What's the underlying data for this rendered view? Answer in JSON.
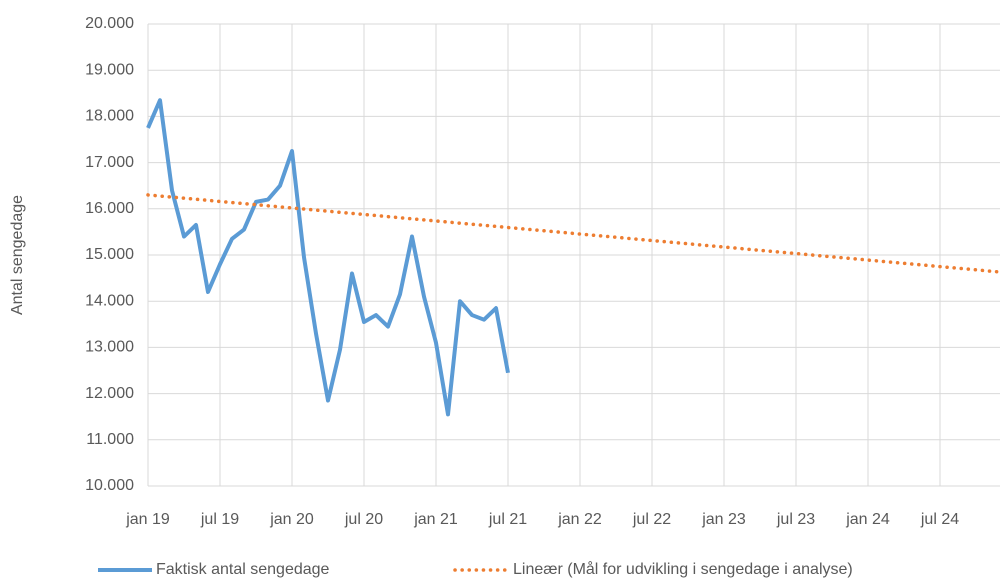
{
  "chart_data": {
    "type": "line",
    "y_label": "Antal sengedage",
    "categories": [
      "jan 19",
      null,
      null,
      null,
      null,
      null,
      "jul 19",
      null,
      null,
      null,
      null,
      null,
      "jan 20",
      null,
      null,
      null,
      null,
      null,
      "jul 20",
      null,
      null,
      null,
      null,
      null,
      "jan 21",
      null,
      null,
      null,
      null,
      null,
      "jul 21",
      null,
      null,
      null,
      null,
      null,
      "jan 22",
      null,
      null,
      null,
      null,
      null,
      "jul 22",
      null,
      null,
      null,
      null,
      null,
      "jan 23",
      null,
      null,
      null,
      null,
      null,
      "jul 23",
      null,
      null,
      null,
      null,
      null,
      "jan 24",
      null,
      null,
      null,
      null,
      null,
      "jul 24",
      null,
      null,
      null,
      null,
      null
    ],
    "series": [
      {
        "name": "Faktisk antal sengedage",
        "color": "#5b9bd5",
        "dash": "solid",
        "values": [
          17750,
          18350,
          16400,
          15400,
          15650,
          14200,
          14800,
          15350,
          15550,
          16150,
          16200,
          16500,
          17250,
          14950,
          13300,
          11850,
          12950,
          14600,
          13550,
          13700,
          13450,
          14150,
          15400,
          14100,
          13100,
          11550,
          14000,
          13700,
          13600,
          13850,
          12450,
          null,
          null,
          null,
          null,
          null,
          null,
          null,
          null,
          null,
          null,
          null,
          null,
          null,
          null,
          null,
          null,
          null,
          null,
          null,
          null,
          null,
          null,
          null,
          null,
          null,
          null,
          null,
          null,
          null,
          null,
          null,
          null,
          null,
          null,
          null,
          null,
          null,
          null,
          null,
          null,
          null
        ]
      },
      {
        "name": "Lineær (Mål for udvikling i sengedage i analyse)",
        "color": "#ed7d31",
        "dash": "dotted",
        "values": [
          16300,
          16277,
          16253,
          16230,
          16206,
          16183,
          16159,
          16136,
          16112,
          16089,
          16065,
          16042,
          16018,
          15995,
          15971,
          15948,
          15924,
          15901,
          15877,
          15854,
          15830,
          15807,
          15783,
          15760,
          15736,
          15713,
          15689,
          15666,
          15642,
          15619,
          15595,
          15572,
          15548,
          15525,
          15501,
          15478,
          15454,
          15431,
          15407,
          15384,
          15360,
          15337,
          15313,
          15290,
          15266,
          15243,
          15219,
          15196,
          15172,
          15149,
          15125,
          15102,
          15078,
          15055,
          15031,
          15008,
          14984,
          14961,
          14937,
          14914,
          14890,
          14867,
          14843,
          14820,
          14796,
          14773,
          14749,
          14726,
          14702,
          14679,
          14655,
          14632
        ]
      }
    ],
    "ylim": [
      10000,
      20000
    ],
    "yticks": [
      {
        "value": 10000,
        "label": "10.000"
      },
      {
        "value": 11000,
        "label": "11.000"
      },
      {
        "value": 12000,
        "label": "12.000"
      },
      {
        "value": 13000,
        "label": "13.000"
      },
      {
        "value": 14000,
        "label": "14.000"
      },
      {
        "value": 15000,
        "label": "15.000"
      },
      {
        "value": 16000,
        "label": "16.000"
      },
      {
        "value": 17000,
        "label": "17.000"
      },
      {
        "value": 18000,
        "label": "18.000"
      },
      {
        "value": 19000,
        "label": "19.000"
      },
      {
        "value": 20000,
        "label": "20.000"
      }
    ],
    "grid": true,
    "legend": "bottom"
  }
}
